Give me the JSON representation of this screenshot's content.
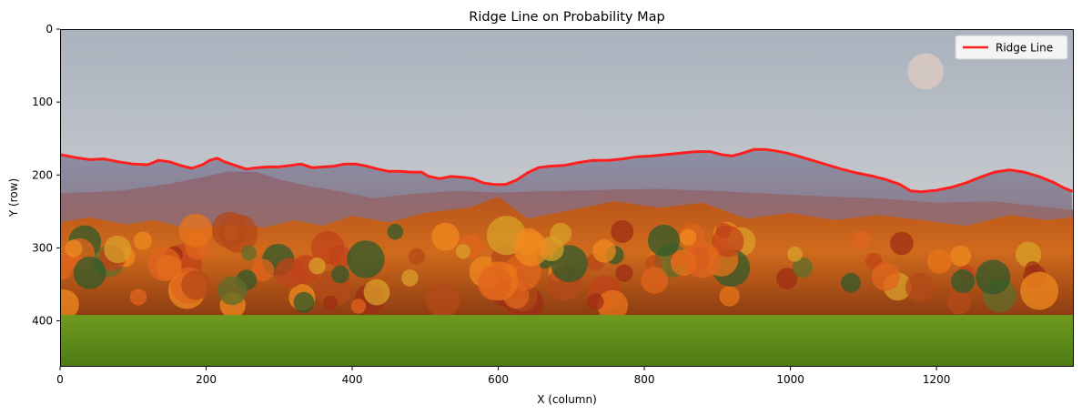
{
  "chart_data": {
    "type": "line",
    "title": "Ridge Line on Probability Map",
    "xlabel": "X (column)",
    "ylabel": "Y (row)",
    "xlim": [
      0,
      1388
    ],
    "ylim": [
      463,
      0
    ],
    "y_inverted": true,
    "x_ticks": [
      0,
      200,
      400,
      600,
      800,
      1000,
      1200
    ],
    "y_ticks": [
      0,
      100,
      200,
      300,
      400
    ],
    "grid": false,
    "legend_position": "top-right",
    "background": "photograph of a mountain ridge above autumn trees and a green field",
    "series": [
      {
        "name": "Ridge Line",
        "color": "#ff1f1f",
        "x": [
          0,
          20,
          40,
          60,
          80,
          100,
          120,
          135,
          150,
          165,
          180,
          195,
          205,
          215,
          225,
          240,
          255,
          270,
          285,
          300,
          315,
          330,
          345,
          360,
          375,
          390,
          405,
          420,
          435,
          450,
          465,
          480,
          495,
          505,
          520,
          535,
          550,
          565,
          580,
          595,
          610,
          625,
          640,
          655,
          670,
          690,
          710,
          730,
          750,
          770,
          790,
          810,
          830,
          850,
          870,
          890,
          905,
          920,
          935,
          950,
          965,
          980,
          995,
          1010,
          1030,
          1050,
          1070,
          1090,
          1110,
          1130,
          1150,
          1165,
          1180,
          1200,
          1220,
          1240,
          1260,
          1280,
          1300,
          1320,
          1340,
          1360,
          1375,
          1385
        ],
        "y": [
          172,
          176,
          179,
          178,
          182,
          185,
          186,
          180,
          182,
          187,
          191,
          186,
          180,
          177,
          182,
          187,
          192,
          190,
          189,
          189,
          187,
          185,
          190,
          189,
          188,
          185,
          185,
          188,
          192,
          195,
          195,
          196,
          196,
          202,
          205,
          202,
          203,
          205,
          211,
          213,
          213,
          207,
          197,
          190,
          188,
          187,
          183,
          180,
          180,
          178,
          175,
          174,
          172,
          170,
          168,
          168,
          172,
          174,
          170,
          165,
          165,
          167,
          170,
          174,
          180,
          186,
          192,
          197,
          201,
          206,
          213,
          222,
          223,
          221,
          217,
          211,
          203,
          196,
          193,
          196,
          202,
          210,
          218,
          222
        ]
      }
    ]
  }
}
